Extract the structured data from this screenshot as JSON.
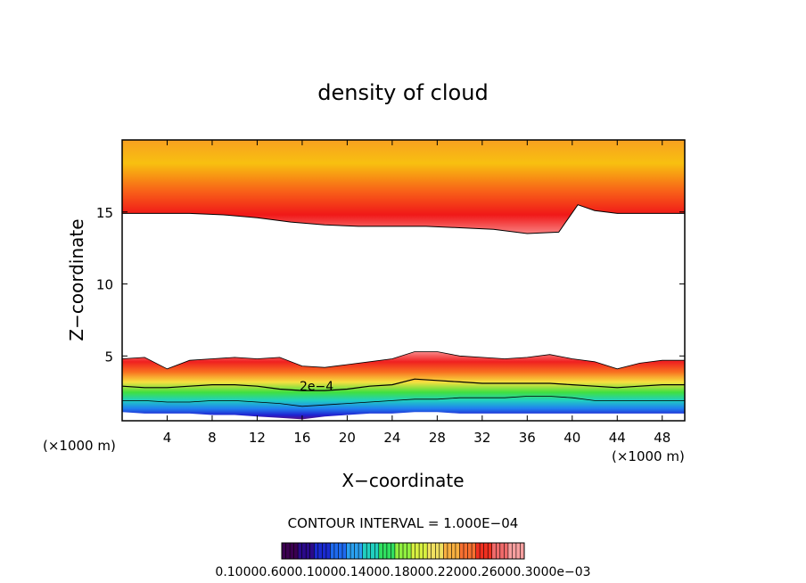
{
  "chart_data": {
    "type": "contour",
    "title": "density of cloud",
    "xlabel": "X−coordinate",
    "ylabel": "Z−coordinate",
    "x_unit_left": "(×1000 m)",
    "x_unit_right": "(×1000 m)",
    "xlim": [
      0,
      50
    ],
    "ylim": [
      0.5,
      20
    ],
    "x_ticks": [
      4,
      8,
      12,
      16,
      20,
      24,
      28,
      32,
      36,
      40,
      44,
      48
    ],
    "x_tick_labels": [
      "4",
      "8",
      "12",
      "16",
      "20",
      "24",
      "28",
      "32",
      "36",
      "40",
      "44",
      "48"
    ],
    "y_ticks": [
      5,
      10,
      15
    ],
    "y_tick_labels": [
      "5",
      "10",
      "15"
    ],
    "contour_label": "2e−4",
    "contour_interval": "CONTOUR INTERVAL = 1.000E−04",
    "colorbar_labels": "0.10000.6000.10000.14000.18000.22000.26000.3000e−03",
    "colorbar_colors": [
      "#3b0050",
      "#2a0a8a",
      "#1a2ad0",
      "#1e6af0",
      "#2aa0f0",
      "#20d0c0",
      "#30e060",
      "#90f040",
      "#d8f040",
      "#f0e060",
      "#f8b040",
      "#f87030",
      "#f03020",
      "#f06a6a",
      "#f8a0a0"
    ],
    "upper_band": {
      "base_z": [
        14.9,
        14.9,
        14.9,
        14.8,
        14.6,
        14.3,
        14.1,
        14.0,
        14.0,
        14.0,
        13.9,
        13.8,
        13.5,
        13.6,
        15.5,
        15.1,
        14.9,
        14.9,
        14.9
      ],
      "base_x": [
        0,
        3,
        6,
        9,
        12,
        15,
        18,
        21,
        24,
        27,
        30,
        33,
        36,
        38.8,
        40.5,
        42,
        44,
        47,
        50
      ]
    },
    "lower_band": {
      "x": [
        0,
        2,
        4,
        6,
        8,
        10,
        12,
        14,
        16,
        18,
        20,
        22,
        24,
        26,
        28,
        30,
        32,
        34,
        36,
        38,
        40,
        42,
        44,
        46,
        48,
        50
      ],
      "top_z": [
        4.8,
        4.9,
        4.1,
        4.7,
        4.8,
        4.9,
        4.8,
        4.9,
        4.3,
        4.2,
        4.4,
        4.6,
        4.8,
        5.3,
        5.3,
        5.0,
        4.9,
        4.8,
        4.9,
        5.1,
        4.8,
        4.6,
        4.1,
        4.5,
        4.7,
        4.7
      ],
      "c2e4_z": [
        2.9,
        2.8,
        2.8,
        2.9,
        3.0,
        3.0,
        2.9,
        2.7,
        2.6,
        2.6,
        2.7,
        2.9,
        3.0,
        3.4,
        3.3,
        3.2,
        3.1,
        3.1,
        3.1,
        3.1,
        3.0,
        2.9,
        2.8,
        2.9,
        3.0,
        3.0
      ],
      "mid_z": [
        1.9,
        1.9,
        1.8,
        1.8,
        1.9,
        1.9,
        1.8,
        1.7,
        1.5,
        1.6,
        1.7,
        1.8,
        1.9,
        2.0,
        2.0,
        2.1,
        2.1,
        2.1,
        2.2,
        2.2,
        2.1,
        1.9,
        1.9,
        1.9,
        1.9,
        1.9
      ],
      "bottom_z": [
        1.1,
        1.0,
        1.0,
        1.0,
        0.9,
        0.9,
        0.8,
        0.7,
        0.6,
        0.8,
        0.9,
        1.0,
        1.0,
        1.1,
        1.1,
        1.0,
        1.0,
        1.0,
        1.0,
        1.0,
        1.0,
        1.0,
        1.0,
        1.0,
        1.0,
        1.0
      ]
    }
  }
}
